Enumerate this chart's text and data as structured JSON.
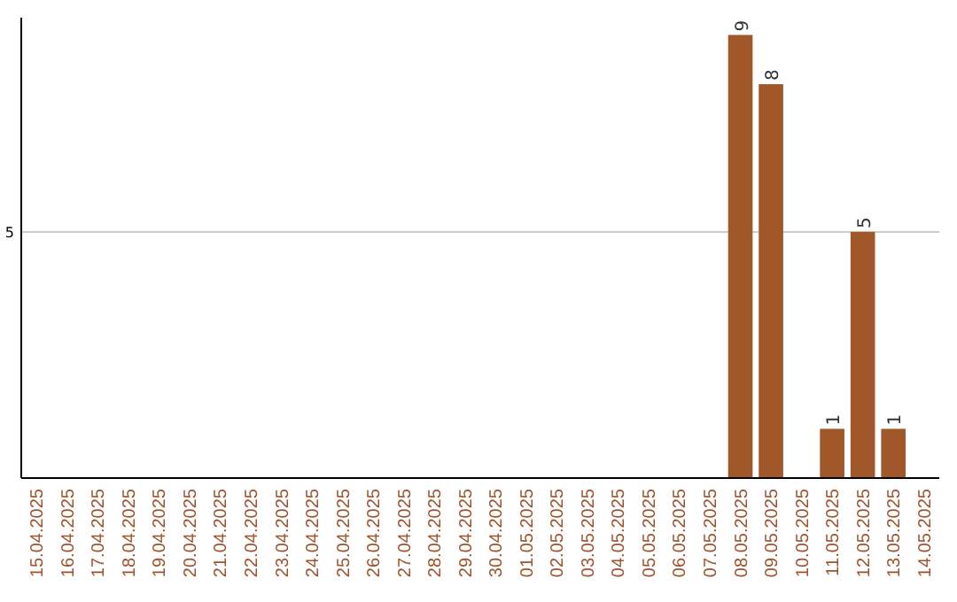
{
  "chart_data": {
    "type": "bar",
    "categories": [
      "15.04.2025",
      "16.04.2025",
      "17.04.2025",
      "18.04.2025",
      "19.04.2025",
      "20.04.2025",
      "21.04.2025",
      "22.04.2025",
      "23.04.2025",
      "24.04.2025",
      "25.04.2025",
      "26.04.2025",
      "27.04.2025",
      "28.04.2025",
      "29.04.2025",
      "30.04.2025",
      "01.05.2025",
      "02.05.2025",
      "03.05.2025",
      "04.05.2025",
      "05.05.2025",
      "06.05.2025",
      "07.05.2025",
      "08.05.2025",
      "09.05.2025",
      "10.05.2025",
      "11.05.2025",
      "12.05.2025",
      "13.05.2025",
      "14.05.2025"
    ],
    "values": [
      null,
      null,
      null,
      null,
      null,
      null,
      null,
      null,
      null,
      null,
      null,
      null,
      null,
      null,
      null,
      null,
      null,
      null,
      null,
      null,
      null,
      null,
      null,
      9,
      8,
      null,
      1,
      5,
      1,
      null
    ],
    "value_labels": [
      null,
      null,
      null,
      null,
      null,
      null,
      null,
      null,
      null,
      null,
      null,
      null,
      null,
      null,
      null,
      null,
      null,
      null,
      null,
      null,
      null,
      null,
      null,
      "9",
      "8",
      null,
      "1",
      "5",
      "1",
      null
    ],
    "color": "#a0582a",
    "ylim": [
      0,
      9.35
    ],
    "ref_lines": [
      {
        "axis": "y",
        "value": 5,
        "label": "5",
        "color": "#cccccc"
      }
    ]
  }
}
